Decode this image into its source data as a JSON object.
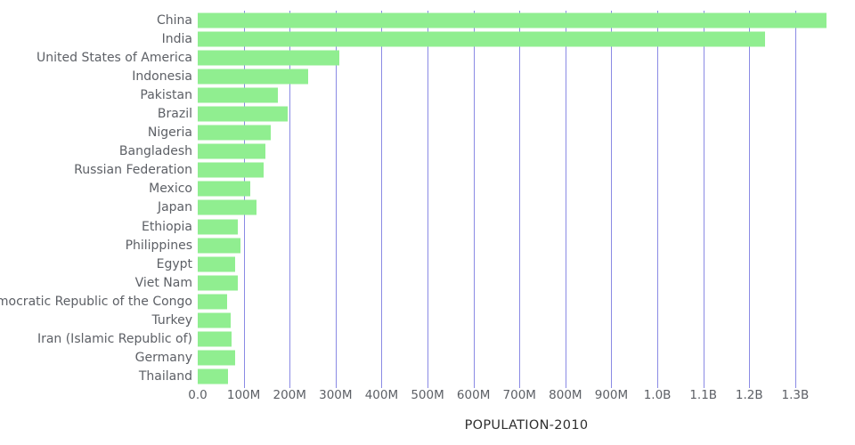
{
  "chart_data": {
    "type": "bar",
    "orientation": "horizontal",
    "title": "POPULATION-2010",
    "categories": [
      "China",
      "India",
      "United States of America",
      "Indonesia",
      "Pakistan",
      "Brazil",
      "Nigeria",
      "Bangladesh",
      "Russian Federation",
      "Mexico",
      "Japan",
      "Ethiopia",
      "Philippines",
      "Egypt",
      "Viet Nam",
      "Democratic Republic of the Congo",
      "Turkey",
      "Iran (Islamic Republic of)",
      "Germany",
      "Thailand"
    ],
    "values_millions": [
      1368,
      1234,
      309,
      240,
      174,
      195,
      159,
      148,
      143,
      114,
      128,
      87,
      93,
      82,
      88,
      64,
      72,
      74,
      82,
      66
    ],
    "x_axis": {
      "max_millions": 1430,
      "ticks": [
        {
          "label": "0.0",
          "value": 0
        },
        {
          "label": "100M",
          "value": 100
        },
        {
          "label": "200M",
          "value": 200
        },
        {
          "label": "300M",
          "value": 300
        },
        {
          "label": "400M",
          "value": 400
        },
        {
          "label": "500M",
          "value": 500
        },
        {
          "label": "600M",
          "value": 600
        },
        {
          "label": "700M",
          "value": 700
        },
        {
          "label": "800M",
          "value": 800
        },
        {
          "label": "900M",
          "value": 900
        },
        {
          "label": "1.0B",
          "value": 1000
        },
        {
          "label": "1.1B",
          "value": 1100
        },
        {
          "label": "1.2B",
          "value": 1200
        },
        {
          "label": "1.3B",
          "value": 1300
        }
      ]
    },
    "legend": "none",
    "grid": "vertical",
    "colors": {
      "bar": "#90ee90",
      "gridline": "#8a8ae4",
      "label_text": "#5d6066",
      "tick_text": "#5d6066",
      "title_text": "#2e2e2e"
    }
  }
}
